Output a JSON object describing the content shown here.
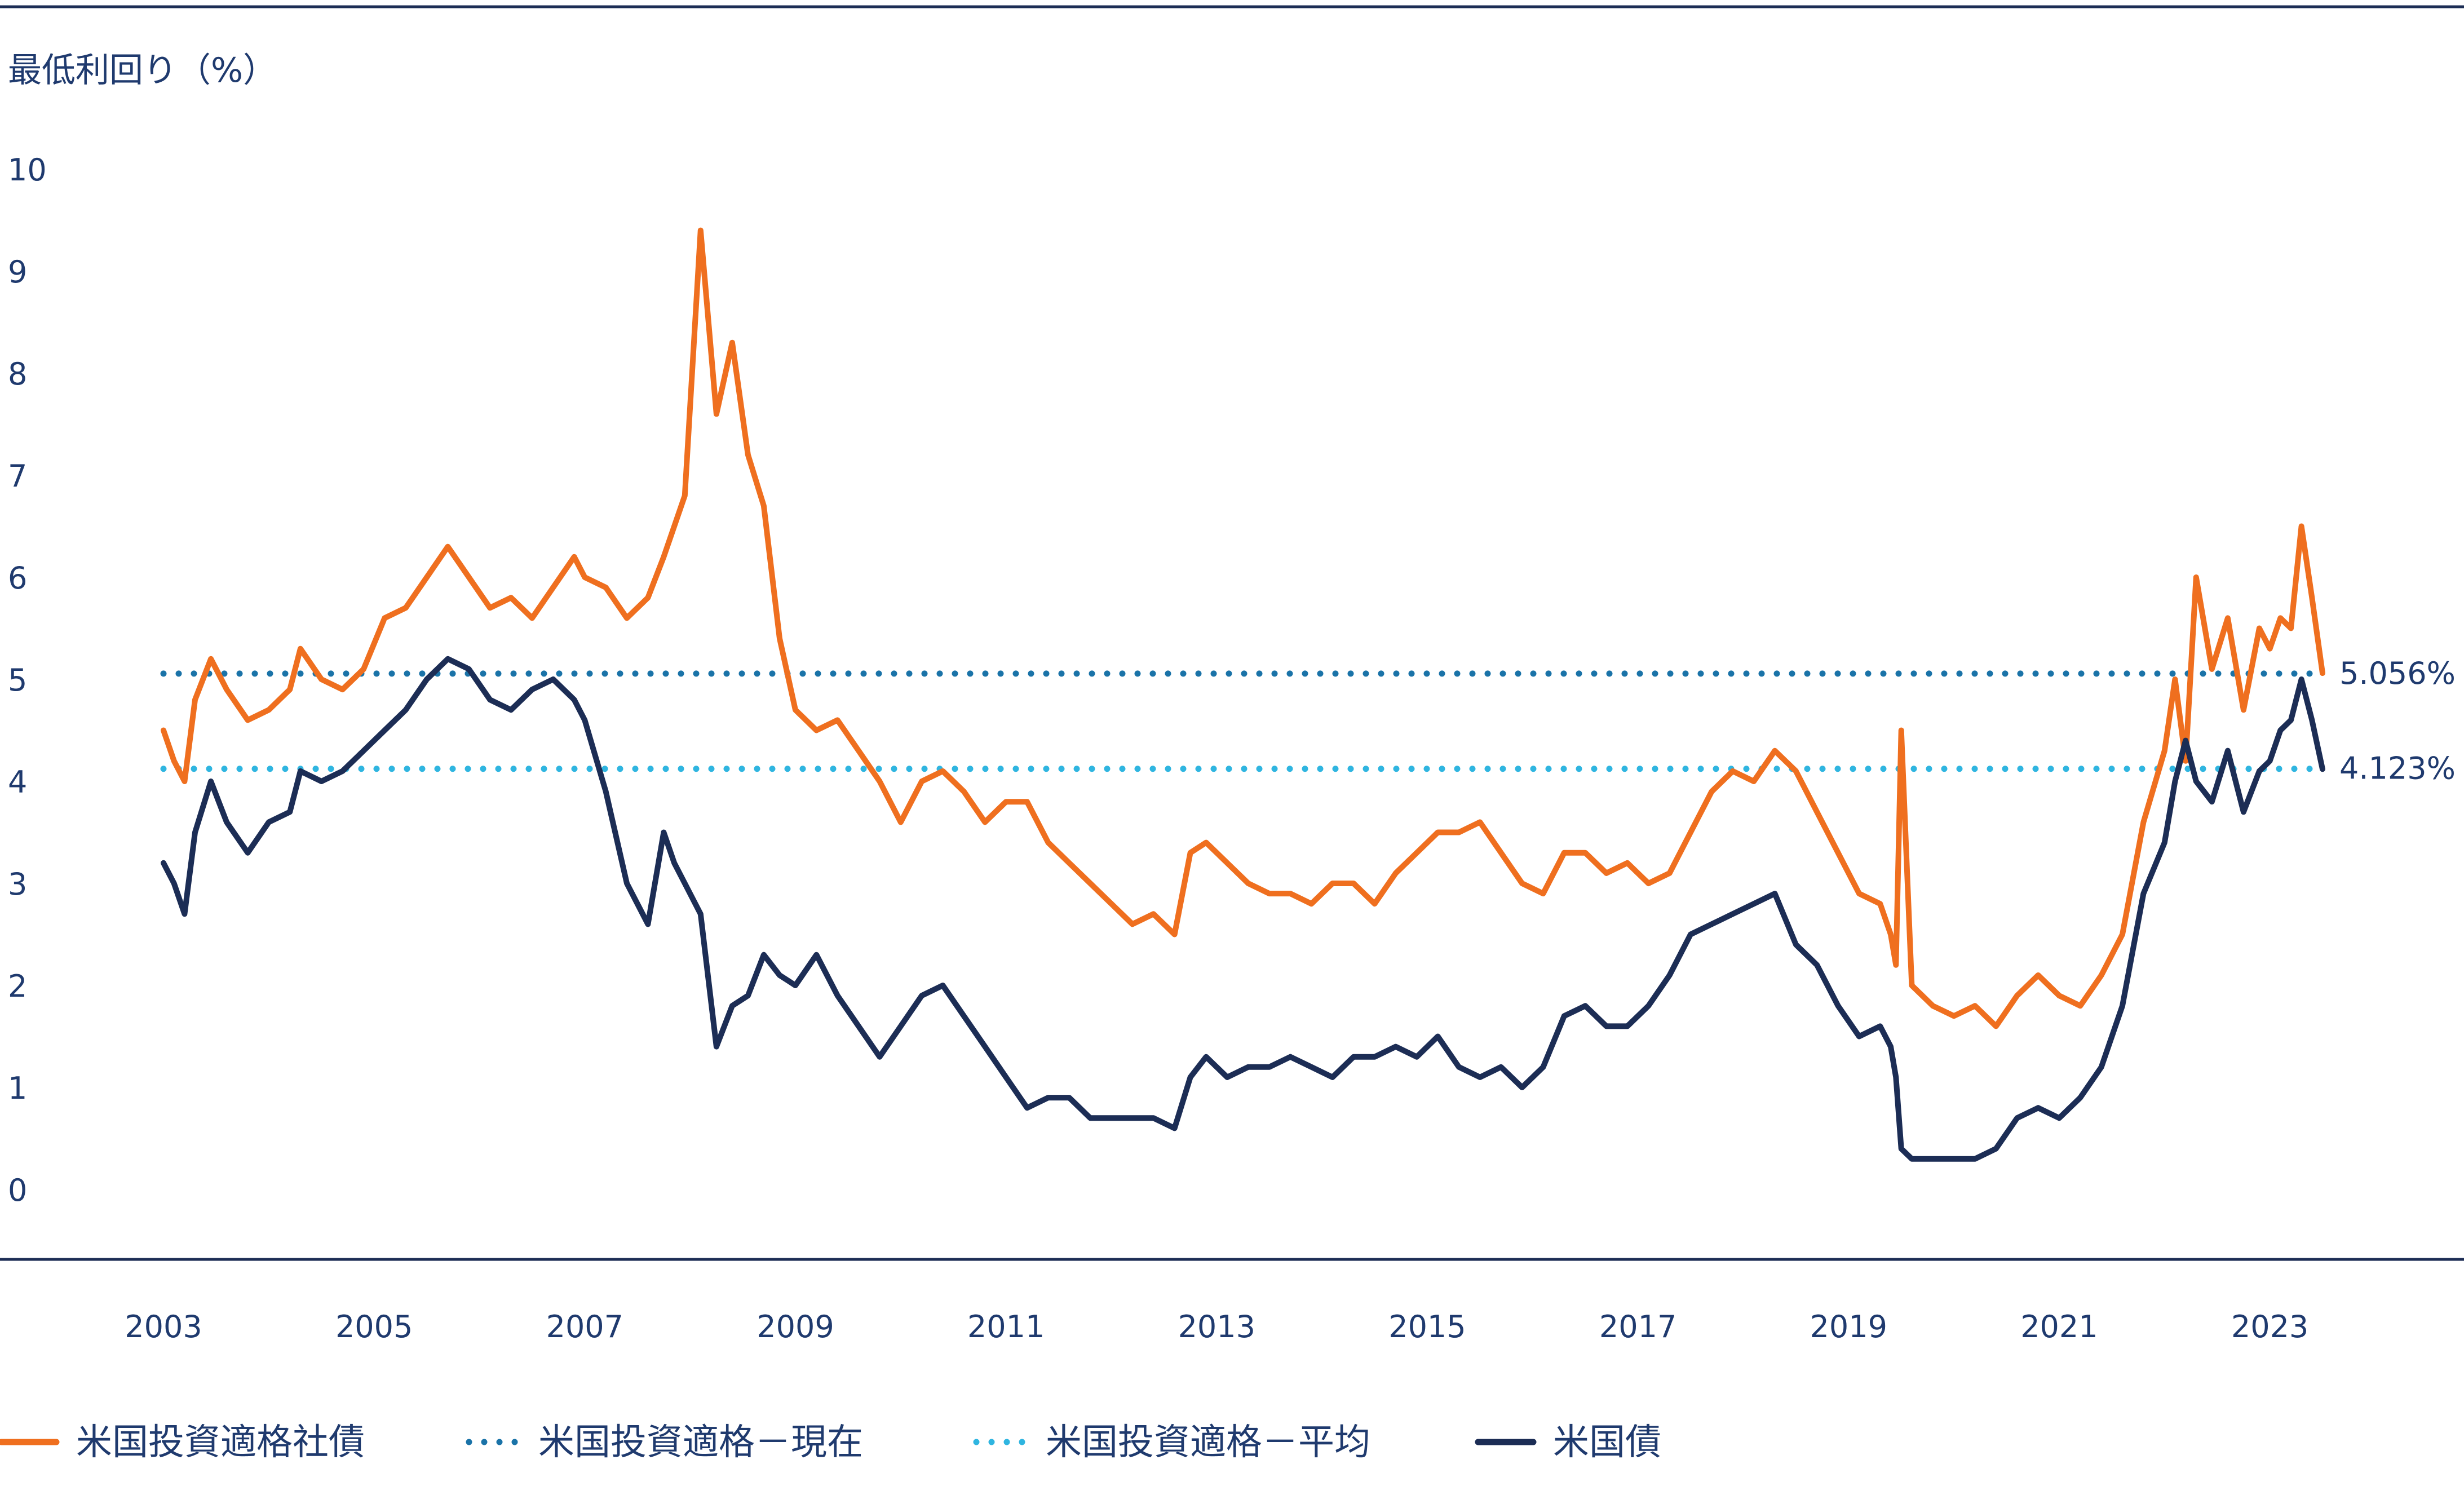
{
  "colors": {
    "corporate": "#ef6f1f",
    "treasury": "#1c2d55",
    "current_ref": "#1a73a8",
    "average_ref": "#2fb5e0",
    "axis": "#1c2d55",
    "text": "#1f3a6e"
  },
  "chart_data": {
    "type": "line",
    "ylabel": "最低利回り（%）",
    "xlabel": "",
    "ylim": [
      0,
      10
    ],
    "y_ticks": [
      "0",
      "1",
      "2",
      "3",
      "4",
      "5",
      "6",
      "7",
      "8",
      "9",
      "10"
    ],
    "x_range": [
      2003.0,
      2023.5
    ],
    "x_ticks": [
      "2003",
      "2005",
      "2007",
      "2009",
      "2011",
      "2013",
      "2015",
      "2017",
      "2019",
      "2021",
      "2023"
    ],
    "grid": false,
    "legend_position": "bottom",
    "series": [
      {
        "name": "米国投資適格社債",
        "style": "solid",
        "color_key": "corporate",
        "x": [
          2003.0,
          2003.1,
          2003.2,
          2003.3,
          2003.45,
          2003.6,
          2003.8,
          2004.0,
          2004.2,
          2004.3,
          2004.5,
          2004.7,
          2004.9,
          2005.1,
          2005.3,
          2005.5,
          2005.7,
          2005.9,
          2006.1,
          2006.3,
          2006.5,
          2006.7,
          2006.9,
          2007.0,
          2007.2,
          2007.4,
          2007.6,
          2007.75,
          2007.85,
          2007.95,
          2008.1,
          2008.25,
          2008.4,
          2008.55,
          2008.7,
          2008.85,
          2009.0,
          2009.2,
          2009.4,
          2009.6,
          2009.8,
          2010.0,
          2010.2,
          2010.4,
          2010.6,
          2010.8,
          2011.0,
          2011.2,
          2011.4,
          2011.6,
          2011.8,
          2012.0,
          2012.2,
          2012.4,
          2012.6,
          2012.75,
          2012.9,
          2013.1,
          2013.3,
          2013.5,
          2013.7,
          2013.9,
          2014.1,
          2014.3,
          2014.5,
          2014.7,
          2014.9,
          2015.1,
          2015.3,
          2015.5,
          2015.7,
          2015.9,
          2016.1,
          2016.3,
          2016.5,
          2016.7,
          2016.9,
          2017.1,
          2017.3,
          2017.5,
          2017.7,
          2017.9,
          2018.1,
          2018.3,
          2018.5,
          2018.7,
          2018.9,
          2019.1,
          2019.3,
          2019.4,
          2019.45,
          2019.5,
          2019.6,
          2019.8,
          2020.0,
          2020.2,
          2020.4,
          2020.6,
          2020.8,
          2021.0,
          2021.2,
          2021.4,
          2021.6,
          2021.8,
          2022.0,
          2022.1,
          2022.2,
          2022.3,
          2022.45,
          2022.6,
          2022.75,
          2022.9,
          2023.0,
          2023.1,
          2023.2,
          2023.3,
          2023.4,
          2023.5
        ],
        "y": [
          4.5,
          4.2,
          4.0,
          4.8,
          5.2,
          4.9,
          4.6,
          4.7,
          4.9,
          5.3,
          5.0,
          4.9,
          5.1,
          5.6,
          5.7,
          6.0,
          6.3,
          6.0,
          5.7,
          5.8,
          5.6,
          5.9,
          6.2,
          6.0,
          5.9,
          5.6,
          5.8,
          6.2,
          6.5,
          6.8,
          9.4,
          7.6,
          8.3,
          7.2,
          6.7,
          5.4,
          4.7,
          4.5,
          4.6,
          4.3,
          4.0,
          3.6,
          4.0,
          4.1,
          3.9,
          3.6,
          3.8,
          3.8,
          3.4,
          3.2,
          3.0,
          2.8,
          2.6,
          2.7,
          2.5,
          3.3,
          3.4,
          3.2,
          3.0,
          2.9,
          2.9,
          2.8,
          3.0,
          3.0,
          2.8,
          3.1,
          3.3,
          3.5,
          3.5,
          3.6,
          3.3,
          3.0,
          2.9,
          3.3,
          3.3,
          3.1,
          3.2,
          3.0,
          3.1,
          3.5,
          3.9,
          4.1,
          4.0,
          4.3,
          4.1,
          3.7,
          3.3,
          2.9,
          2.8,
          2.5,
          2.2,
          4.5,
          2.0,
          1.8,
          1.7,
          1.8,
          1.6,
          1.9,
          2.1,
          1.9,
          1.8,
          2.1,
          2.5,
          3.6,
          4.3,
          5.0,
          4.2,
          6.0,
          5.1,
          5.6,
          4.7,
          5.5,
          5.3,
          5.6,
          5.5,
          6.5,
          5.8,
          5.06
        ]
      },
      {
        "name": "米国債",
        "style": "solid",
        "color_key": "treasury",
        "x": [
          2003.0,
          2003.1,
          2003.2,
          2003.3,
          2003.45,
          2003.6,
          2003.8,
          2004.0,
          2004.2,
          2004.3,
          2004.5,
          2004.7,
          2004.9,
          2005.1,
          2005.3,
          2005.5,
          2005.7,
          2005.9,
          2006.1,
          2006.3,
          2006.5,
          2006.7,
          2006.9,
          2007.0,
          2007.2,
          2007.4,
          2007.6,
          2007.75,
          2007.85,
          2007.95,
          2008.1,
          2008.25,
          2008.4,
          2008.55,
          2008.7,
          2008.85,
          2009.0,
          2009.2,
          2009.4,
          2009.6,
          2009.8,
          2010.0,
          2010.2,
          2010.4,
          2010.6,
          2010.8,
          2011.0,
          2011.2,
          2011.4,
          2011.6,
          2011.8,
          2012.0,
          2012.2,
          2012.4,
          2012.6,
          2012.75,
          2012.9,
          2013.1,
          2013.3,
          2013.5,
          2013.7,
          2013.9,
          2014.1,
          2014.3,
          2014.5,
          2014.7,
          2014.9,
          2015.1,
          2015.3,
          2015.5,
          2015.7,
          2015.9,
          2016.1,
          2016.3,
          2016.5,
          2016.7,
          2016.9,
          2017.1,
          2017.3,
          2017.5,
          2017.7,
          2017.9,
          2018.1,
          2018.3,
          2018.5,
          2018.7,
          2018.9,
          2019.1,
          2019.3,
          2019.4,
          2019.45,
          2019.5,
          2019.6,
          2019.8,
          2020.0,
          2020.2,
          2020.4,
          2020.6,
          2020.8,
          2021.0,
          2021.2,
          2021.4,
          2021.6,
          2021.8,
          2022.0,
          2022.1,
          2022.2,
          2022.3,
          2022.45,
          2022.6,
          2022.75,
          2022.9,
          2023.0,
          2023.1,
          2023.2,
          2023.3,
          2023.4,
          2023.5
        ],
        "y": [
          3.2,
          3.0,
          2.7,
          3.5,
          4.0,
          3.6,
          3.3,
          3.6,
          3.7,
          4.1,
          4.0,
          4.1,
          4.3,
          4.5,
          4.7,
          5.0,
          5.2,
          5.1,
          4.8,
          4.7,
          4.9,
          5.0,
          4.8,
          4.6,
          3.9,
          3.0,
          2.6,
          3.5,
          3.2,
          3.0,
          2.7,
          1.4,
          1.8,
          1.9,
          2.3,
          2.1,
          2.0,
          2.3,
          1.9,
          1.6,
          1.3,
          1.6,
          1.9,
          2.0,
          1.7,
          1.4,
          1.1,
          0.8,
          0.9,
          0.9,
          0.7,
          0.7,
          0.7,
          0.7,
          0.6,
          1.1,
          1.3,
          1.1,
          1.2,
          1.2,
          1.3,
          1.2,
          1.1,
          1.3,
          1.3,
          1.4,
          1.3,
          1.5,
          1.2,
          1.1,
          1.2,
          1.0,
          1.2,
          1.7,
          1.8,
          1.6,
          1.6,
          1.8,
          2.1,
          2.5,
          2.6,
          2.7,
          2.8,
          2.9,
          2.4,
          2.2,
          1.8,
          1.5,
          1.6,
          1.4,
          1.1,
          0.4,
          0.3,
          0.3,
          0.3,
          0.3,
          0.4,
          0.7,
          0.8,
          0.7,
          0.9,
          1.2,
          1.8,
          2.9,
          3.4,
          4.0,
          4.4,
          4.0,
          3.8,
          4.3,
          3.7,
          4.1,
          4.2,
          4.5,
          4.6,
          5.0,
          4.6,
          4.12
        ]
      }
    ],
    "reference_lines": [
      {
        "name": "米国投資適格－現在",
        "value": 5.056,
        "label": "5.056%",
        "style": "dotted",
        "color_key": "current_ref"
      },
      {
        "name": "米国投資適格－平均",
        "value": 4.123,
        "label": "4.123%",
        "style": "dotted",
        "color_key": "average_ref"
      }
    ]
  },
  "legend": [
    {
      "label": "米国投資適格社債",
      "style": "solid",
      "color_key": "corporate"
    },
    {
      "label": "米国投資適格－現在",
      "style": "dotted",
      "color_key": "current_ref"
    },
    {
      "label": "米国投資適格－平均",
      "style": "dotted",
      "color_key": "average_ref"
    },
    {
      "label": "米国債",
      "style": "solid",
      "color_key": "treasury"
    }
  ]
}
